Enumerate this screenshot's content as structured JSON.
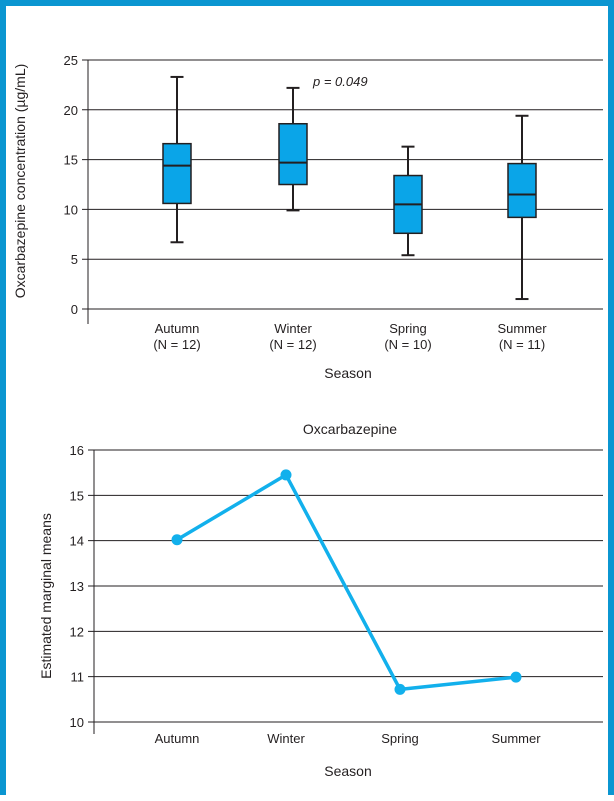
{
  "colors": {
    "border": "#0b96d1",
    "box": "#0aa5e8",
    "line": "#12b0ec",
    "ink": "#231f20"
  },
  "chart_data": [
    {
      "type": "box",
      "ylabel": "Oxcarbazepine concentration (µg/mL)",
      "xlabel": "Season",
      "annotation": "p = 0.049",
      "ylim": [
        0,
        25
      ],
      "yticks": [
        "0",
        "5",
        "10",
        "15",
        "20",
        "25"
      ],
      "grid": true,
      "categories": [
        "Autumn",
        "Winter",
        "Spring",
        "Summer"
      ],
      "counts": [
        "(N = 12)",
        "(N = 12)",
        "(N = 10)",
        "(N = 11)"
      ],
      "boxes": [
        {
          "min": 6.7,
          "q1": 10.6,
          "median": 14.4,
          "q3": 16.6,
          "max": 23.3
        },
        {
          "min": 9.9,
          "q1": 12.5,
          "median": 14.7,
          "q3": 18.6,
          "max": 22.2
        },
        {
          "min": 5.4,
          "q1": 7.6,
          "median": 10.5,
          "q3": 13.4,
          "max": 16.3
        },
        {
          "min": 1.0,
          "q1": 9.2,
          "median": 11.5,
          "q3": 14.6,
          "max": 19.4
        }
      ]
    },
    {
      "type": "line",
      "title": "Oxcarbazepine",
      "ylabel": "Estimated marginal means",
      "xlabel": "Season",
      "ylim": [
        10,
        16
      ],
      "yticks": [
        "10",
        "11",
        "12",
        "13",
        "14",
        "15",
        "16"
      ],
      "grid": true,
      "categories": [
        "Autumn",
        "Winter",
        "Spring",
        "Summer"
      ],
      "values": [
        14.02,
        15.45,
        10.72,
        10.99
      ]
    }
  ]
}
